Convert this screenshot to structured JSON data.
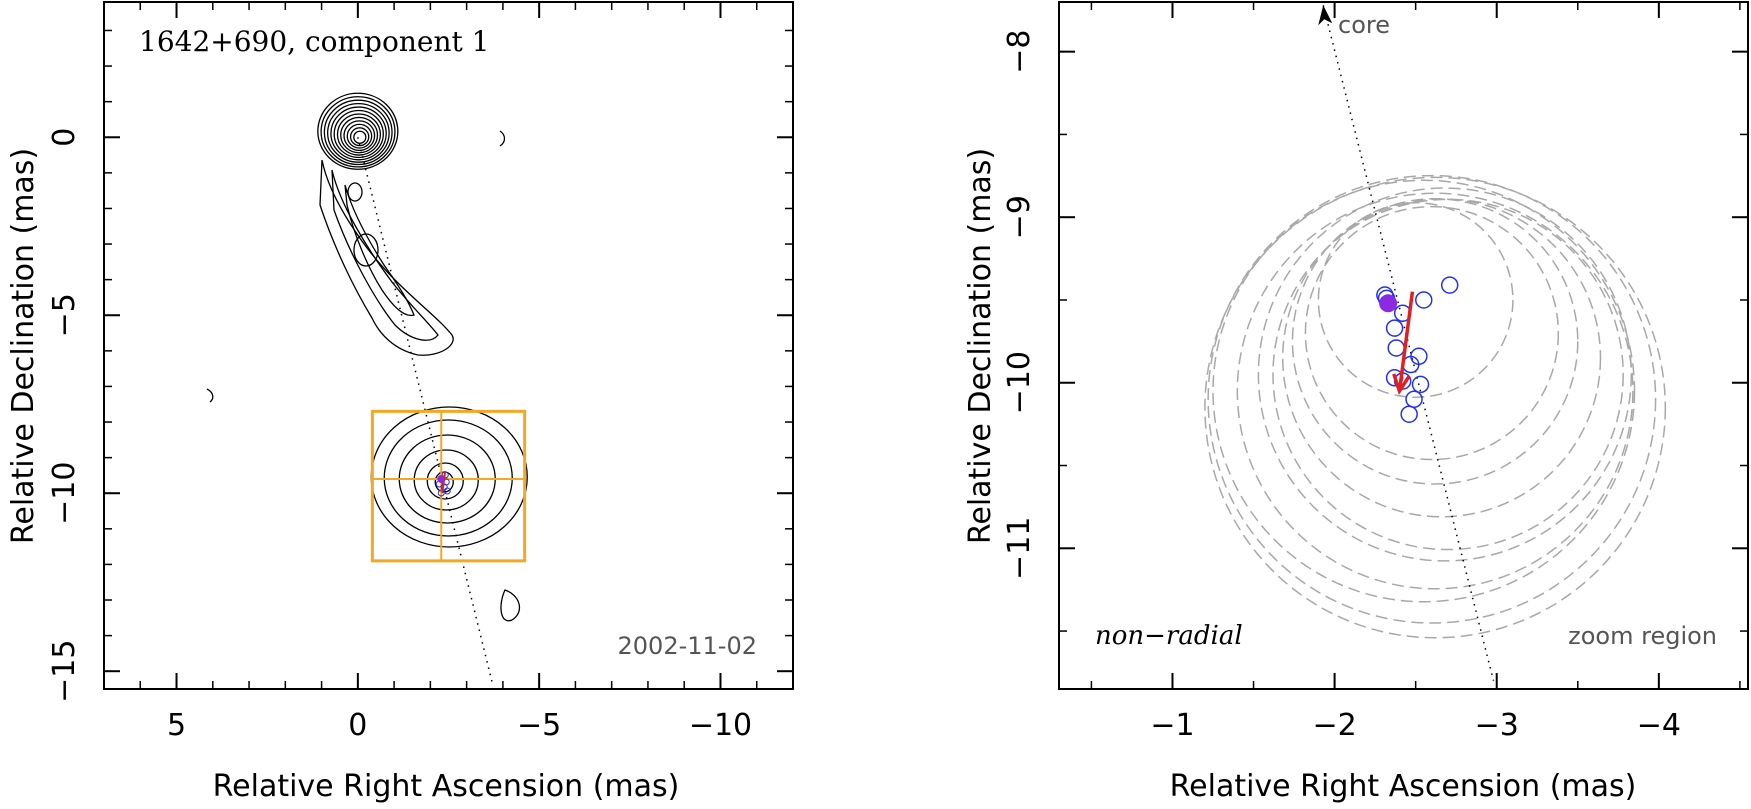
{
  "figure": {
    "left_panel": {
      "title": "1642+690, component 1",
      "date": "2002-11-02",
      "xlabel": "Relative Right Ascension (mas)",
      "ylabel": "Relative Declination (mas)",
      "xticks": [
        "5",
        "0",
        "−5",
        "−10"
      ],
      "yticks": [
        "0",
        "−5",
        "−10",
        "−15"
      ]
    },
    "right_panel": {
      "core_label": "core",
      "note_label": "non−radial",
      "zoom_label": "zoom region",
      "xlabel": "Relative Right Ascension (mas)",
      "ylabel": "Relative Declination (mas)",
      "xticks": [
        "−1",
        "−2",
        "−3",
        "−4"
      ],
      "yticks": [
        "−8",
        "−9",
        "−10",
        "−11"
      ]
    }
  },
  "chart_data": [
    {
      "type": "scatter",
      "panel": "left",
      "title": "1642+690, component 1",
      "annotation": "2002-11-02",
      "xlabel": "Relative Right Ascension (mas)",
      "ylabel": "Relative Declination (mas)",
      "xlim": [
        7,
        -12
      ],
      "ylim": [
        -15.5,
        3.8
      ],
      "xticks": [
        5,
        0,
        -5,
        -10
      ],
      "yticks": [
        0,
        -5,
        -10,
        -15
      ],
      "contour_center": [
        0,
        0
      ],
      "ridge_line": [
        [
          0,
          0
        ],
        [
          -3.7,
          -15.3
        ]
      ],
      "zoom_box": {
        "x_range": [
          -0.4,
          -4.6
        ],
        "y_range": [
          -7.7,
          -11.9
        ],
        "cross_x": -2.3,
        "cross_y": -9.6
      },
      "component_point": [
        -2.3,
        -9.6
      ]
    },
    {
      "type": "scatter",
      "panel": "right",
      "xlabel": "Relative Right Ascension (mas)",
      "ylabel": "Relative Declination (mas)",
      "xlim": [
        -0.3,
        -4.55
      ],
      "ylim": [
        -11.85,
        -7.7
      ],
      "xticks": [
        -1,
        -2,
        -3,
        -4
      ],
      "yticks": [
        -8,
        -9,
        -10,
        -11
      ],
      "core_direction_label": "core",
      "annotation_left": "non−radial",
      "annotation_right": "zoom region",
      "ridge_line": [
        [
          -1.93,
          -7.72
        ],
        [
          -2.98,
          -11.8
        ]
      ],
      "mean_point": [
        -2.33,
        -9.52
      ],
      "observations": [
        [
          -2.31,
          -9.47
        ],
        [
          -2.32,
          -9.49
        ],
        [
          -2.42,
          -9.58
        ],
        [
          -2.55,
          -9.5
        ],
        [
          -2.71,
          -9.41
        ],
        [
          -2.37,
          -9.67
        ],
        [
          -2.38,
          -9.79
        ],
        [
          -2.52,
          -9.84
        ],
        [
          -2.47,
          -9.89
        ],
        [
          -2.37,
          -9.97
        ],
        [
          -2.42,
          -9.99
        ],
        [
          -2.53,
          -10.01
        ],
        [
          -2.49,
          -10.1
        ],
        [
          -2.46,
          -10.19
        ]
      ],
      "velocity_arrow": {
        "from": [
          -2.48,
          -9.45
        ],
        "to": [
          -2.4,
          -10.05
        ]
      },
      "error_circles": [
        {
          "cx": -2.62,
          "cy": -10.15,
          "r": 1.42
        },
        {
          "cx": -2.6,
          "cy": -10.1,
          "r": 1.38
        },
        {
          "cx": -2.55,
          "cy": -10.05,
          "r": 1.3
        },
        {
          "cx": -2.62,
          "cy": -10.05,
          "r": 1.22
        },
        {
          "cx": -2.68,
          "cy": -9.95,
          "r": 1.15
        },
        {
          "cx": -2.7,
          "cy": -9.95,
          "r": 1.08
        },
        {
          "cx": -2.66,
          "cy": -9.85,
          "r": 0.98
        },
        {
          "cx": -2.62,
          "cy": -9.75,
          "r": 0.88
        },
        {
          "cx": -2.6,
          "cy": -9.7,
          "r": 0.78
        },
        {
          "cx": -2.5,
          "cy": -9.5,
          "r": 0.6
        }
      ]
    }
  ]
}
